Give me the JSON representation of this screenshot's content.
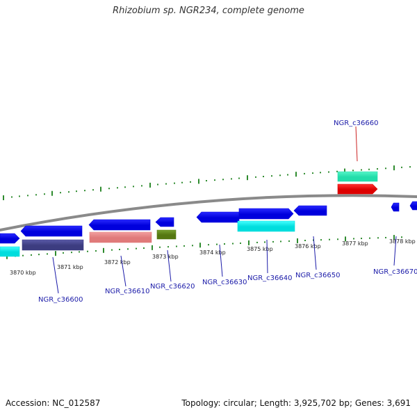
{
  "title": "Rhizobium sp. NGR234, complete genome",
  "footer": {
    "accession": "Accession: NC_012587",
    "summary": "Topology: circular; Length: 3,925,702 bp; Genes: 3,691"
  },
  "colors": {
    "backbone": "#8a8a8a",
    "tick": "#2e8b2e",
    "gene_label": "#1a1aa8",
    "highlight_label": "#cc2222"
  },
  "kbp_labels": [
    "3870 kbp",
    "3871 kbp",
    "3872 kbp",
    "3873 kbp",
    "3874 kbp",
    "3875 kbp",
    "3876 kbp",
    "3877 kbp",
    "3878 kbp"
  ],
  "gene_labels": [
    {
      "text": "NGR_c36600",
      "highlight": false
    },
    {
      "text": "NGR_c36610",
      "highlight": false
    },
    {
      "text": "NGR_c36620",
      "highlight": false
    },
    {
      "text": "NGR_c36630",
      "highlight": false
    },
    {
      "text": "NGR_c36640",
      "highlight": false
    },
    {
      "text": "NGR_c36650",
      "highlight": false
    },
    {
      "text": "NGR_c36660",
      "highlight": true
    },
    {
      "text": "NGR_c36670",
      "highlight": false
    }
  ],
  "features": {
    "blue": [
      "#0000dd",
      "#2a2aff"
    ],
    "cyan": [
      "#00dddd",
      "#44ffff"
    ],
    "darkpurple": [
      "#3c3c80",
      "#5a5aa8"
    ],
    "salmon": [
      "#e07a7a",
      "#f2a0a0"
    ],
    "olive": [
      "#557711",
      "#77a030"
    ],
    "teal": [
      "#22ddaa",
      "#55f5c8"
    ],
    "red": [
      "#dd0000",
      "#ff3333"
    ]
  }
}
